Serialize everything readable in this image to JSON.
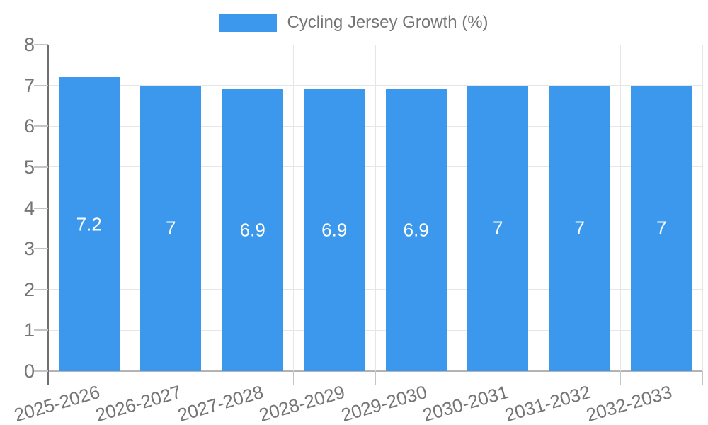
{
  "chart_data": {
    "type": "bar",
    "title": "Cycling Jersey Growth (%)",
    "legend": {
      "label": "Cycling Jersey Growth (%)",
      "position": "top"
    },
    "categories": [
      "2025-2026",
      "2026-2027",
      "2027-2028",
      "2028-2029",
      "2029-2030",
      "2030-2031",
      "2031-2032",
      "2032-2033"
    ],
    "series": [
      {
        "name": "Cycling Jersey Growth (%)",
        "values": [
          7.2,
          7,
          6.9,
          6.9,
          6.9,
          7,
          7,
          7
        ]
      }
    ],
    "value_labels": [
      "7.2",
      "7",
      "6.9",
      "6.9",
      "6.9",
      "7",
      "7",
      "7"
    ],
    "xlabel": "",
    "ylabel": "",
    "ylim": [
      0,
      8
    ],
    "yticks": [
      0,
      1,
      2,
      3,
      4,
      5,
      6,
      7,
      8
    ],
    "grid": true,
    "x_label_rotation_deg": -16,
    "bar_value_labels_visible": true,
    "colors": {
      "bar": "#3B98EC",
      "grid": "#E6E6E6",
      "tick": "#C4C4C4",
      "axis_line": "#707070",
      "baseline": "#B3B3B3",
      "text": "#757575",
      "value_text": "#FFFFFF",
      "background": "#FFFFFF"
    }
  }
}
